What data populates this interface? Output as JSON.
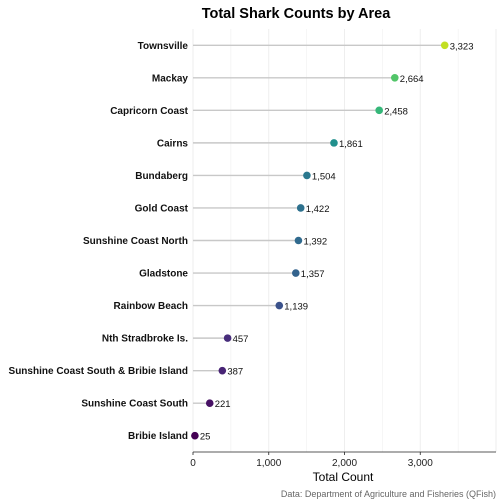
{
  "chart_data": {
    "type": "lollipop",
    "title": "Total Shark Counts by Area",
    "xlabel": "Total Count",
    "ylabel": "",
    "caption": "Data: Department of Agriculture and Fisheries (QFish)",
    "xlim": [
      0,
      4000
    ],
    "xticks": [
      0,
      1000,
      2000,
      3000
    ],
    "xtick_labels": [
      "0",
      "1,000",
      "2,000",
      "3,000"
    ],
    "grid": true,
    "categories": [
      "Townsville",
      "Mackay",
      "Capricorn Coast",
      "Cairns",
      "Bundaberg",
      "Gold Coast",
      "Sunshine Coast North",
      "Gladstone",
      "Rainbow Beach",
      "Nth Stradbroke Is.",
      "Sunshine Coast South & Bribie Island",
      "Sunshine Coast South",
      "Bribie Island"
    ],
    "values": [
      3323,
      2664,
      2458,
      1861,
      1504,
      1422,
      1392,
      1357,
      1139,
      457,
      387,
      221,
      25
    ],
    "value_labels": [
      "3,323",
      "2,664",
      "2,458",
      "1,861",
      "1,504",
      "1,422",
      "1,392",
      "1,357",
      "1,139",
      "457",
      "387",
      "221",
      "25"
    ],
    "colors": [
      "#c2df23",
      "#52c569",
      "#35b779",
      "#21908d",
      "#2a788e",
      "#2d718e",
      "#306a8e",
      "#33638d",
      "#3b528b",
      "#472d7b",
      "#482475",
      "#471164",
      "#440154"
    ],
    "stem_color": "#c8c8c8"
  }
}
